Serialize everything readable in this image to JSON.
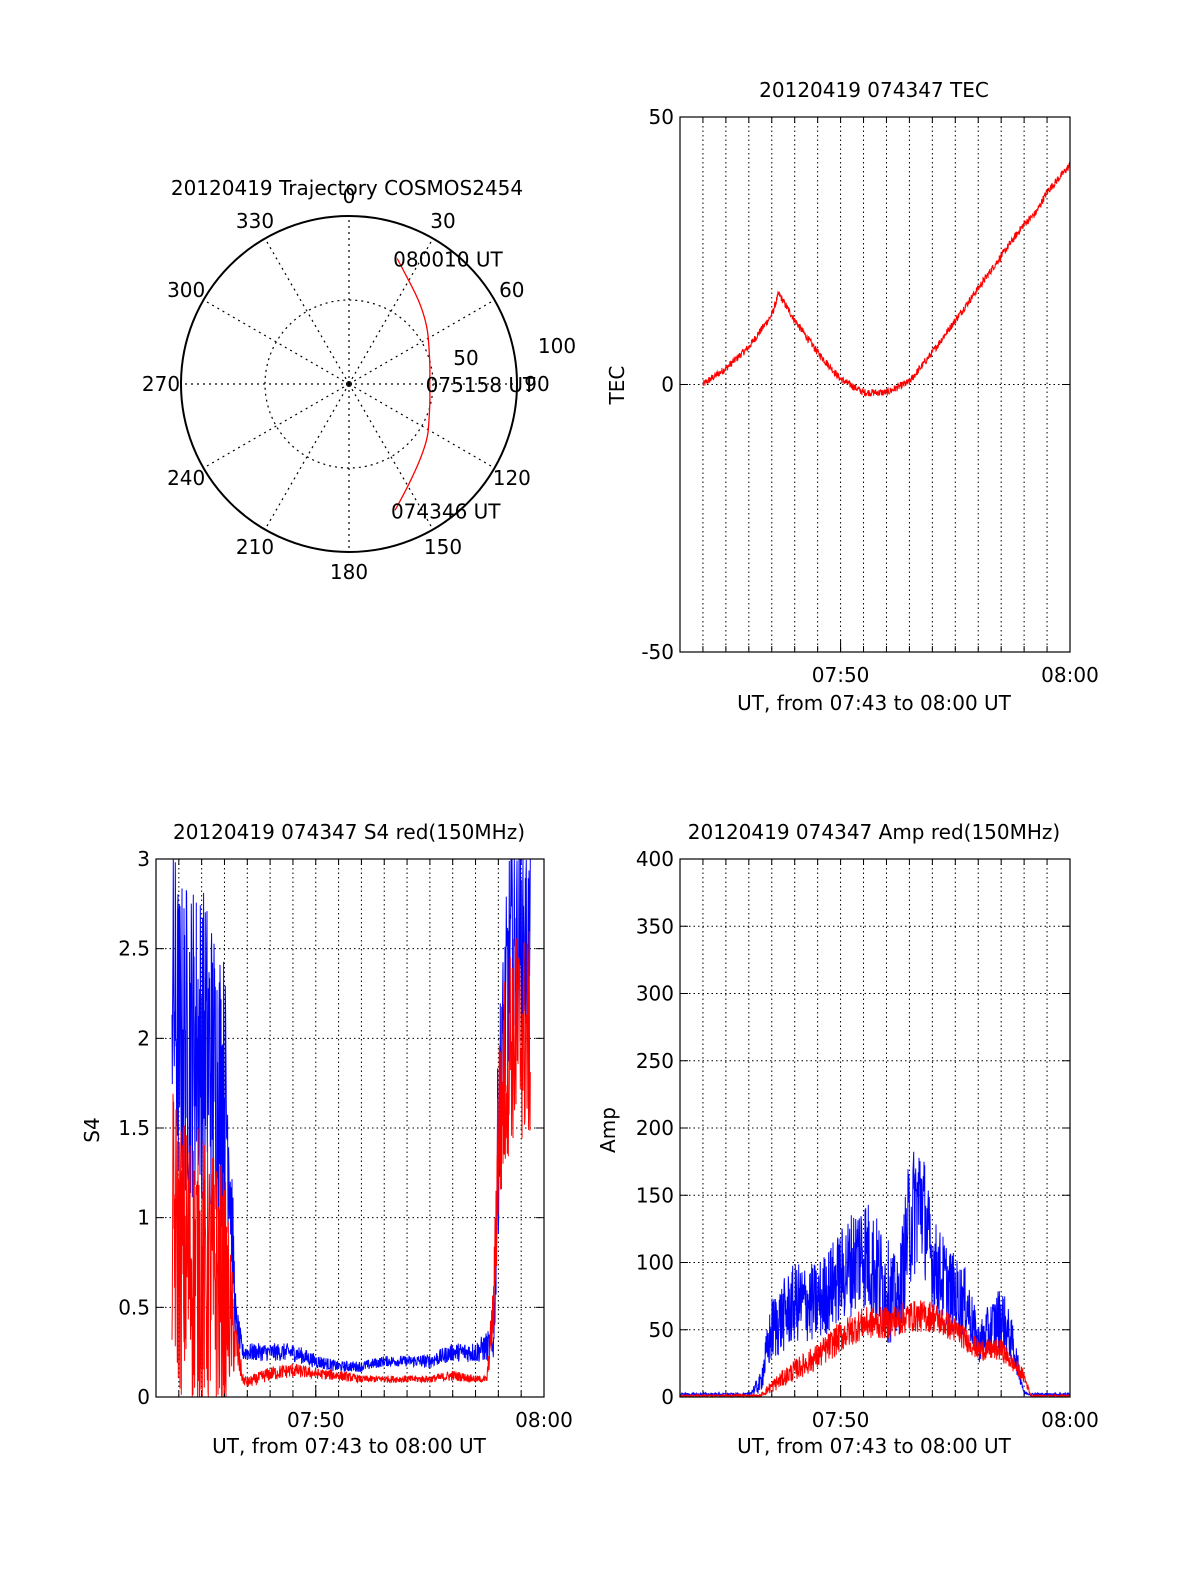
{
  "chart_data": [
    {
      "type": "polar",
      "title": "20120419 Trajectory COSMOS2454",
      "azimuth_labels": [
        "0",
        "30",
        "60",
        "90",
        "120",
        "150",
        "180",
        "210",
        "240",
        "270",
        "300",
        "330"
      ],
      "elevation_ring_labels": [
        "50",
        "100"
      ],
      "rings": [
        0,
        50,
        100
      ],
      "grid": true,
      "track": {
        "color": "#ff0000",
        "points": [
          {
            "az": 160,
            "zen": 80
          },
          {
            "az": 132,
            "zen": 62
          },
          {
            "az": 105,
            "zen": 50
          },
          {
            "az": 90,
            "zen": 48
          },
          {
            "az": 75,
            "zen": 50
          },
          {
            "az": 48,
            "zen": 62
          },
          {
            "az": 21,
            "zen": 80
          }
        ]
      },
      "annotations": [
        {
          "text": "080010 UT",
          "at_point": 6
        },
        {
          "text": "075158 UT",
          "at_point": 3
        },
        {
          "text": "074346 UT",
          "at_point": 0
        }
      ]
    },
    {
      "type": "line",
      "title": "20120419 074347 TEC",
      "xlabel": "UT, from 07:43 to 08:00 UT",
      "ylabel": "TEC",
      "xlim_minutes": [
        43,
        60
      ],
      "ylim": [
        -50,
        50
      ],
      "yticks": [
        "50",
        "0",
        "-50"
      ],
      "xticks": [
        {
          "minute": 50,
          "label": "07:50"
        },
        {
          "minute": 60,
          "label": "08:00"
        }
      ],
      "grid": true,
      "series": [
        {
          "color": "#ff0000",
          "noise": 0.7,
          "x": [
            44.0,
            45.0,
            46.0,
            47.0,
            47.3,
            48.0,
            49.0,
            50.0,
            51.0,
            52.0,
            53.0,
            54.0,
            55.0,
            56.0,
            57.0,
            58.0,
            58.5,
            59.0,
            60.0
          ],
          "y": [
            0,
            3,
            7,
            13,
            17,
            12,
            6,
            1,
            -1.5,
            -1.5,
            0.5,
            6,
            12,
            18,
            24,
            30,
            32,
            36,
            41
          ]
        }
      ]
    },
    {
      "type": "line",
      "title": "20120419 074347 S4 red(150MHz)",
      "xlabel": "UT, from 07:43 to 08:00 UT",
      "ylabel": "S4",
      "xlim_minutes": [
        43,
        60
      ],
      "ylim": [
        0,
        3
      ],
      "yticks": [
        "0",
        "0.5",
        "1",
        "1.5",
        "2",
        "2.5",
        "3"
      ],
      "xticks": [
        {
          "minute": 50,
          "label": "07:50"
        },
        {
          "minute": 60,
          "label": "08:00"
        }
      ],
      "grid": true,
      "series": [
        {
          "color": "#0000ff",
          "x": [
            43.7,
            44.0,
            45.0,
            46.0,
            46.2,
            46.5,
            46.8,
            47.0,
            48.0,
            49.0,
            50.0,
            51.0,
            52.0,
            53.0,
            54.0,
            55.0,
            56.0,
            57.0,
            57.8,
            58.0,
            58.5,
            59.0,
            59.4
          ],
          "y": [
            2.3,
            2.0,
            2.0,
            1.7,
            1.4,
            0.4,
            0.25,
            0.25,
            0.25,
            0.25,
            0.2,
            0.17,
            0.17,
            0.2,
            0.2,
            0.2,
            0.25,
            0.25,
            0.3,
            1.5,
            2.5,
            2.5,
            2.5
          ],
          "noise": [
            0.9,
            0.9,
            0.9,
            0.8,
            0.5,
            0.15,
            0.05,
            0.05,
            0.05,
            0.05,
            0.04,
            0.03,
            0.03,
            0.03,
            0.03,
            0.04,
            0.05,
            0.06,
            0.1,
            0.6,
            0.6,
            0.6,
            0.6
          ]
        },
        {
          "color": "#ff0000",
          "x": [
            43.7,
            44.0,
            45.0,
            46.0,
            46.5,
            46.8,
            47.0,
            48.0,
            49.0,
            50.0,
            51.0,
            52.0,
            53.0,
            54.0,
            55.0,
            56.0,
            57.0,
            57.5,
            57.8,
            58.0,
            58.5,
            59.0,
            59.4
          ],
          "y": [
            1.0,
            0.8,
            0.7,
            0.6,
            0.3,
            0.1,
            0.08,
            0.13,
            0.15,
            0.13,
            0.12,
            0.1,
            0.1,
            0.1,
            0.1,
            0.12,
            0.1,
            0.1,
            0.5,
            1.5,
            2.0,
            2.0,
            2.0
          ],
          "noise": [
            0.8,
            0.8,
            0.8,
            0.7,
            0.15,
            0.03,
            0.03,
            0.04,
            0.04,
            0.03,
            0.03,
            0.02,
            0.02,
            0.02,
            0.02,
            0.03,
            0.02,
            0.02,
            0.2,
            0.6,
            0.6,
            0.6,
            0.6
          ]
        }
      ]
    },
    {
      "type": "line",
      "title": "20120419 074347 Amp red(150MHz)",
      "xlabel": "UT, from 07:43 to 08:00 UT",
      "ylabel": "Amp",
      "xlim_minutes": [
        43,
        60
      ],
      "ylim": [
        0,
        400
      ],
      "yticks": [
        "0",
        "50",
        "100",
        "150",
        "200",
        "250",
        "300",
        "350",
        "400"
      ],
      "xticks": [
        {
          "minute": 50,
          "label": "07:50"
        },
        {
          "minute": 60,
          "label": "08:00"
        }
      ],
      "grid": true,
      "series": [
        {
          "color": "#0000ff",
          "x": [
            43.0,
            46.0,
            46.5,
            47.0,
            48.0,
            49.0,
            50.0,
            51.0,
            52.0,
            52.5,
            53.0,
            53.5,
            54.0,
            55.0,
            55.5,
            56.0,
            56.5,
            57.0,
            57.5,
            58.0,
            58.3,
            59.0,
            60.0
          ],
          "y": [
            2,
            2,
            10,
            50,
            70,
            70,
            90,
            110,
            80,
            70,
            130,
            150,
            100,
            75,
            70,
            40,
            50,
            60,
            40,
            3,
            2,
            2,
            2
          ],
          "noise": [
            1,
            1,
            8,
            25,
            30,
            30,
            35,
            45,
            40,
            30,
            50,
            50,
            35,
            30,
            25,
            15,
            20,
            25,
            15,
            1,
            1,
            1,
            1
          ]
        },
        {
          "color": "#ff0000",
          "x": [
            43.0,
            46.5,
            47.0,
            48.0,
            49.0,
            50.0,
            51.0,
            52.0,
            53.0,
            54.0,
            55.0,
            56.0,
            57.0,
            58.0,
            58.3,
            60.0
          ],
          "y": [
            1,
            1,
            8,
            20,
            30,
            45,
            55,
            55,
            60,
            60,
            50,
            35,
            35,
            15,
            1,
            1
          ],
          "noise": [
            0.5,
            1,
            5,
            8,
            10,
            12,
            12,
            12,
            12,
            12,
            10,
            8,
            8,
            5,
            0.5,
            0.5
          ]
        }
      ]
    }
  ]
}
